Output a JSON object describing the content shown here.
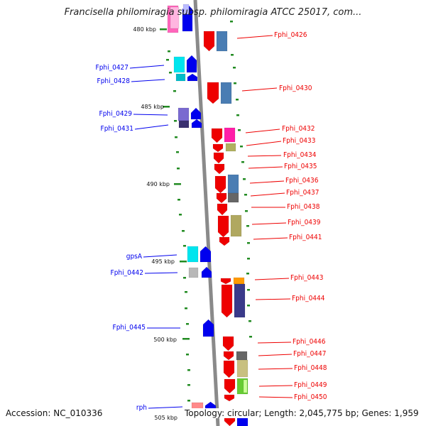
{
  "title": "Francisella philomiragia subsp. philomiragia ATCC 25017, com...",
  "footer": {
    "accession": "Accession: NC_010336",
    "topology": "Topology: circular; Length: 2,045,775 bp; Genes: 1,959"
  },
  "colors": {
    "forward": "#0000ee",
    "reverse": "#ee0000",
    "tick": "#228b22",
    "backbone": "#8a8a8a"
  },
  "scale_labels": [
    "480 kbp",
    "485 kbp",
    "490 kbp",
    "495 kbp",
    "500 kbp",
    "505 kbp"
  ],
  "genes_left": [
    {
      "label": "Fphi_0427"
    },
    {
      "label": "Fphi_0428"
    },
    {
      "label": "Fphi_0429"
    },
    {
      "label": "Fphi_0431"
    },
    {
      "label": "gpsA"
    },
    {
      "label": "Fphi_0442"
    },
    {
      "label": "Fphi_0445"
    },
    {
      "label": "rph"
    }
  ],
  "genes_right": [
    {
      "label": "Fphi_0426"
    },
    {
      "label": "Fphi_0430"
    },
    {
      "label": "Fphi_0432"
    },
    {
      "label": "Fphi_0433"
    },
    {
      "label": "Fphi_0434"
    },
    {
      "label": "Fphi_0435"
    },
    {
      "label": "Fphi_0436"
    },
    {
      "label": "Fphi_0437"
    },
    {
      "label": "Fphi_0438"
    },
    {
      "label": "Fphi_0439"
    },
    {
      "label": "Fphi_0441"
    },
    {
      "label": "Fphi_0443"
    },
    {
      "label": "Fphi_0444"
    },
    {
      "label": "Fphi_0446"
    },
    {
      "label": "Fphi_0447"
    },
    {
      "label": "Fphi_0448"
    },
    {
      "label": "Fphi_0449"
    },
    {
      "label": "Fphi_0450"
    }
  ]
}
